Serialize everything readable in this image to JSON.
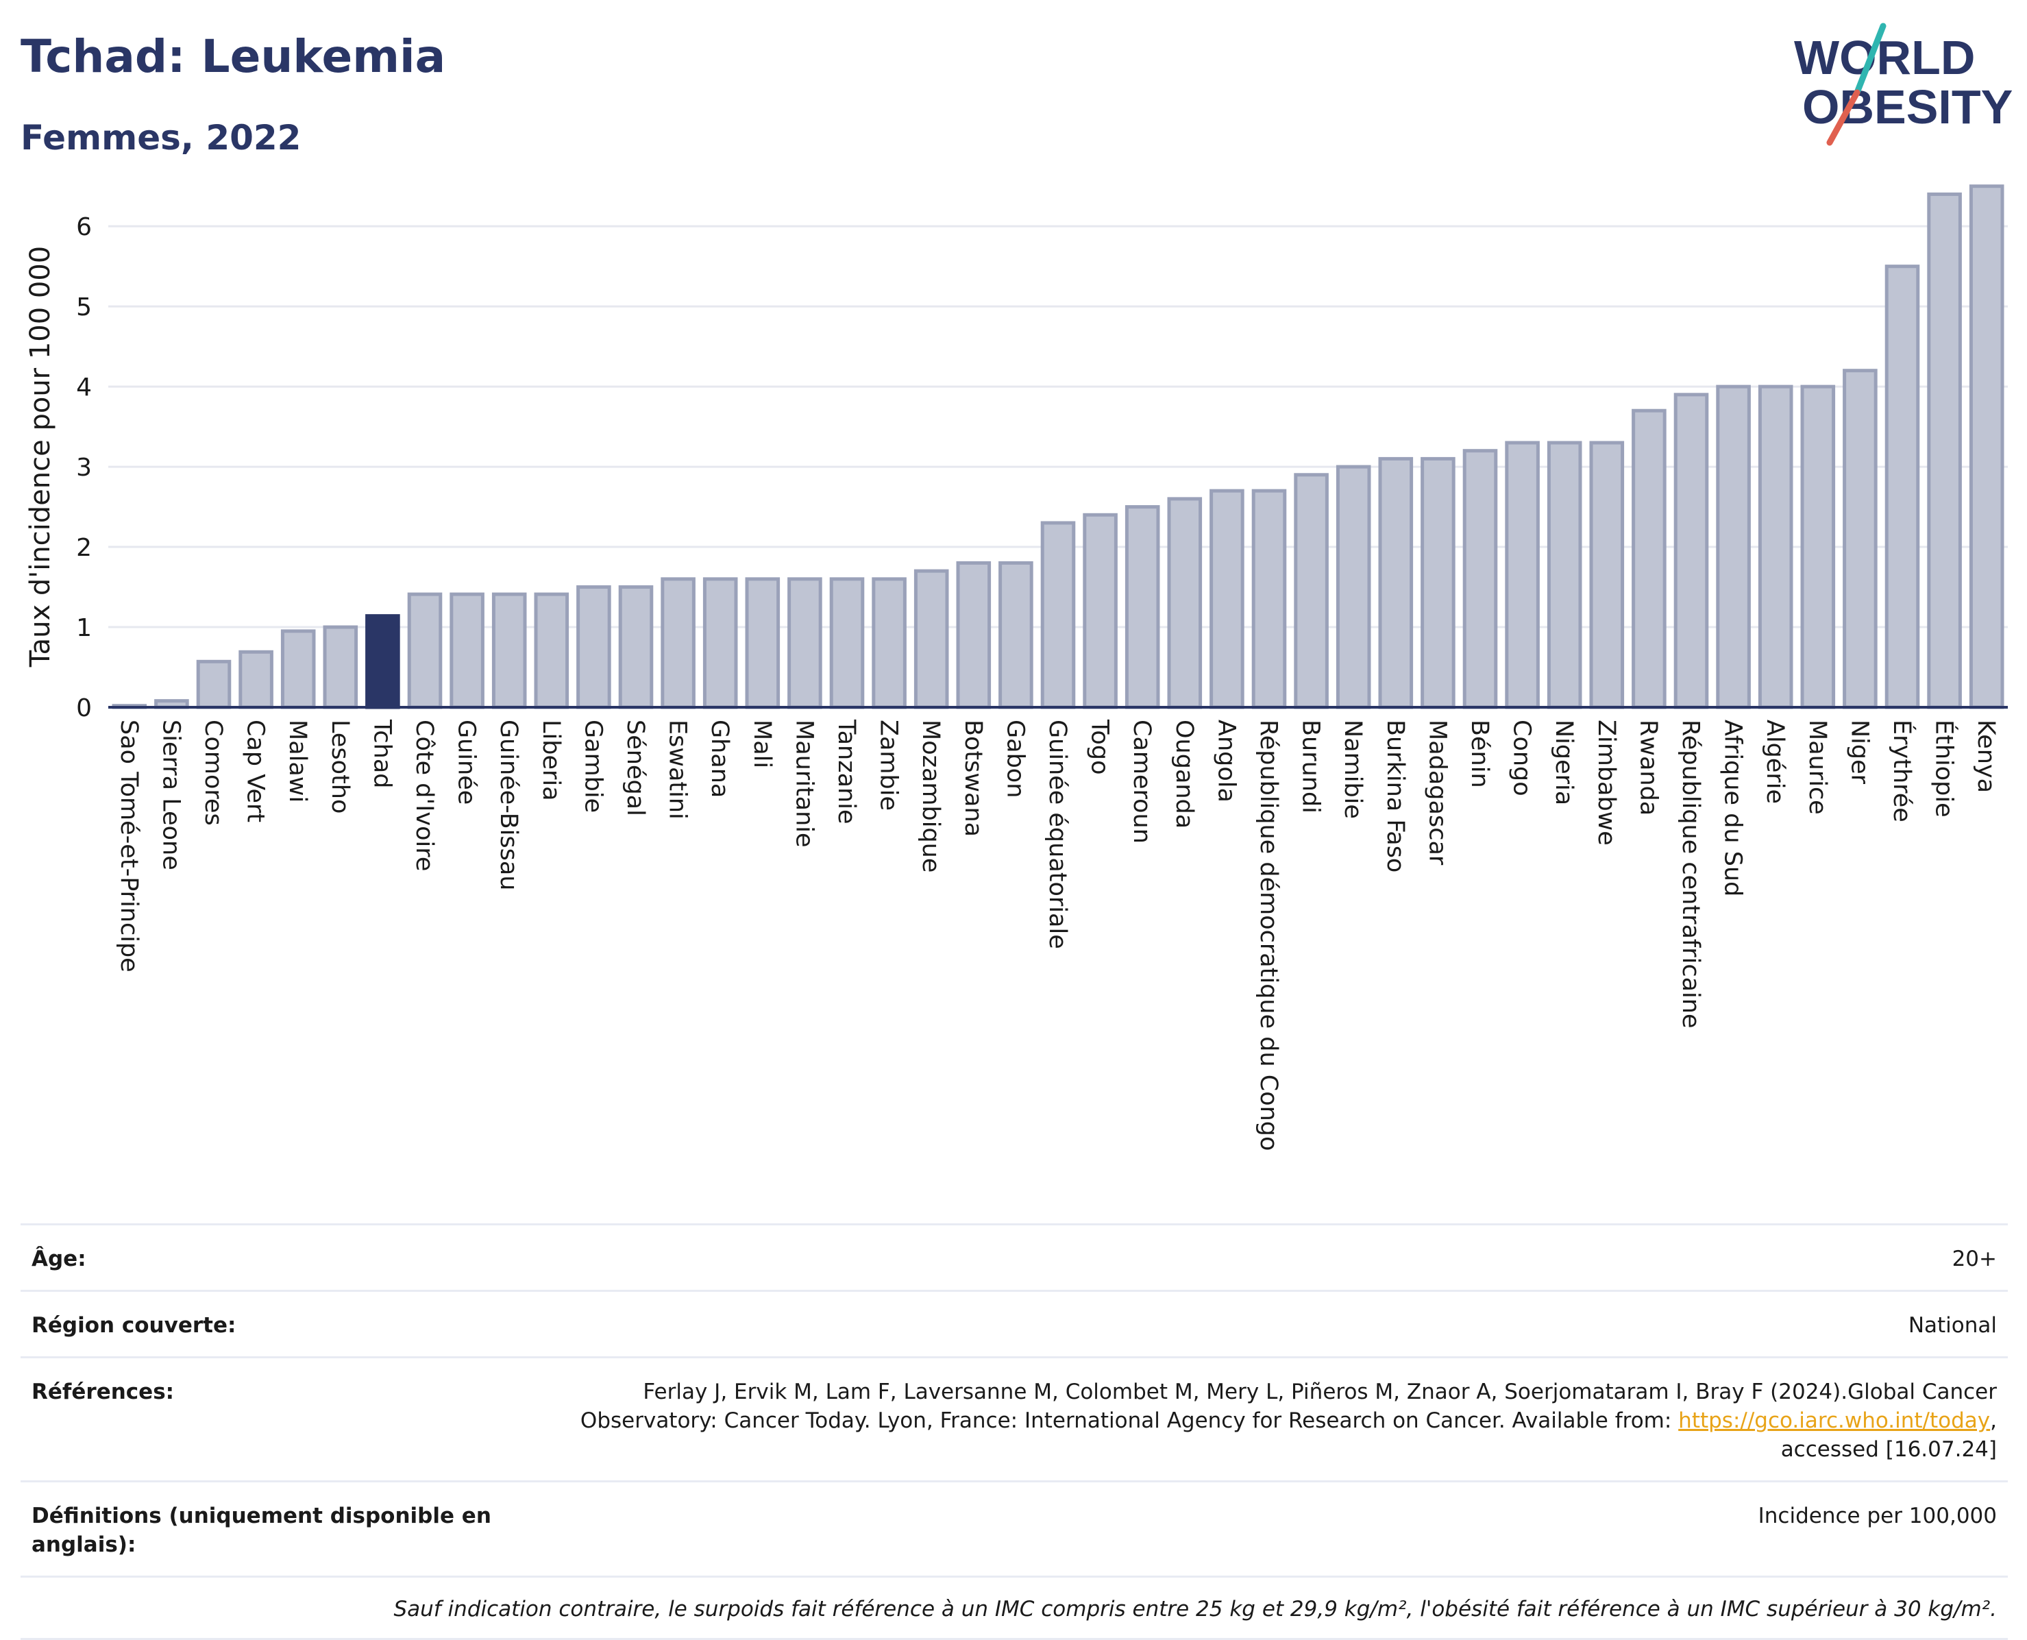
{
  "header": {
    "title": "Tchad: Leukemia",
    "subtitle": "Femmes, 2022"
  },
  "logo": {
    "line1": "WORLD",
    "line2": "OBESITY",
    "brand_color": "#2a3666",
    "slash_colors": [
      "#e0604f",
      "#2fb5b0"
    ]
  },
  "chart_data": {
    "type": "bar",
    "ylabel": "Taux d'incidence pour 100 000",
    "ylim": [
      0,
      6.6
    ],
    "yticks": [
      0,
      1,
      2,
      3,
      4,
      5,
      6
    ],
    "grid": true,
    "highlight": "Tchad",
    "colors": {
      "bar_fill": "#bfc4d3",
      "bar_stroke": "#9aa1b9",
      "highlight_fill": "#2a3666",
      "grid": "#e6e8ef",
      "axis": "#2a3666"
    },
    "categories": [
      "Sao Tomé-et-Principe",
      "Sierra Leone",
      "Comores",
      "Cap Vert",
      "Malawi",
      "Lesotho",
      "Tchad",
      "Côte d'Ivoire",
      "Guinée",
      "Guinée-Bissau",
      "Liberia",
      "Gambie",
      "Sénégal",
      "Eswatini",
      "Ghana",
      "Mali",
      "Mauritanie",
      "Tanzanie",
      "Zambie",
      "Mozambique",
      "Botswana",
      "Gabon",
      "Guinée équatoriale",
      "Togo",
      "Cameroun",
      "Ouganda",
      "Angola",
      "République démocratique du Congo",
      "Burundi",
      "Namibie",
      "Burkina Faso",
      "Madagascar",
      "Bénin",
      "Congo",
      "Nigeria",
      "Zimbabwe",
      "Rwanda",
      "République centrafricaine",
      "Afrique du Sud",
      "Algérie",
      "Maurice",
      "Niger",
      "Érythrée",
      "Éthiopie",
      "Kenya"
    ],
    "values": [
      0.02,
      0.08,
      0.57,
      0.69,
      0.95,
      1.0,
      1.14,
      1.41,
      1.41,
      1.41,
      1.41,
      1.5,
      1.5,
      1.6,
      1.6,
      1.6,
      1.6,
      1.6,
      1.6,
      1.7,
      1.8,
      1.8,
      2.3,
      2.4,
      2.5,
      2.6,
      2.7,
      2.7,
      2.9,
      3.0,
      3.1,
      3.1,
      3.2,
      3.3,
      3.3,
      3.3,
      3.7,
      3.9,
      4.0,
      4.0,
      4.0,
      4.2,
      5.5,
      6.4,
      6.5
    ]
  },
  "meta": {
    "age_label": "Âge:",
    "age_value": "20+",
    "region_label": "Région couverte:",
    "region_value": "National",
    "refs_label": "Références:",
    "refs_text_1": "Ferlay J, Ervik M, Lam F, Laversanne M, Colombet M, Mery L, Piñeros M, Znaor A, Soerjomataram I, Bray F (2024).Global Cancer",
    "refs_text_2": "Observatory: Cancer Today. Lyon, France: International Agency for Research on Cancer. Available from:",
    "refs_link": "https://gco.iarc.who.int/today",
    "refs_text_3": "accessed [16.07.24]",
    "defs_label": "Définitions (uniquement disponible en anglais):",
    "defs_value": "Incidence per 100,000",
    "note": "Sauf indication contraire, le surpoids fait référence à un IMC compris entre 25 kg et 29,9 kg/m², l'obésité fait référence à un IMC supérieur à 30 kg/m²."
  }
}
